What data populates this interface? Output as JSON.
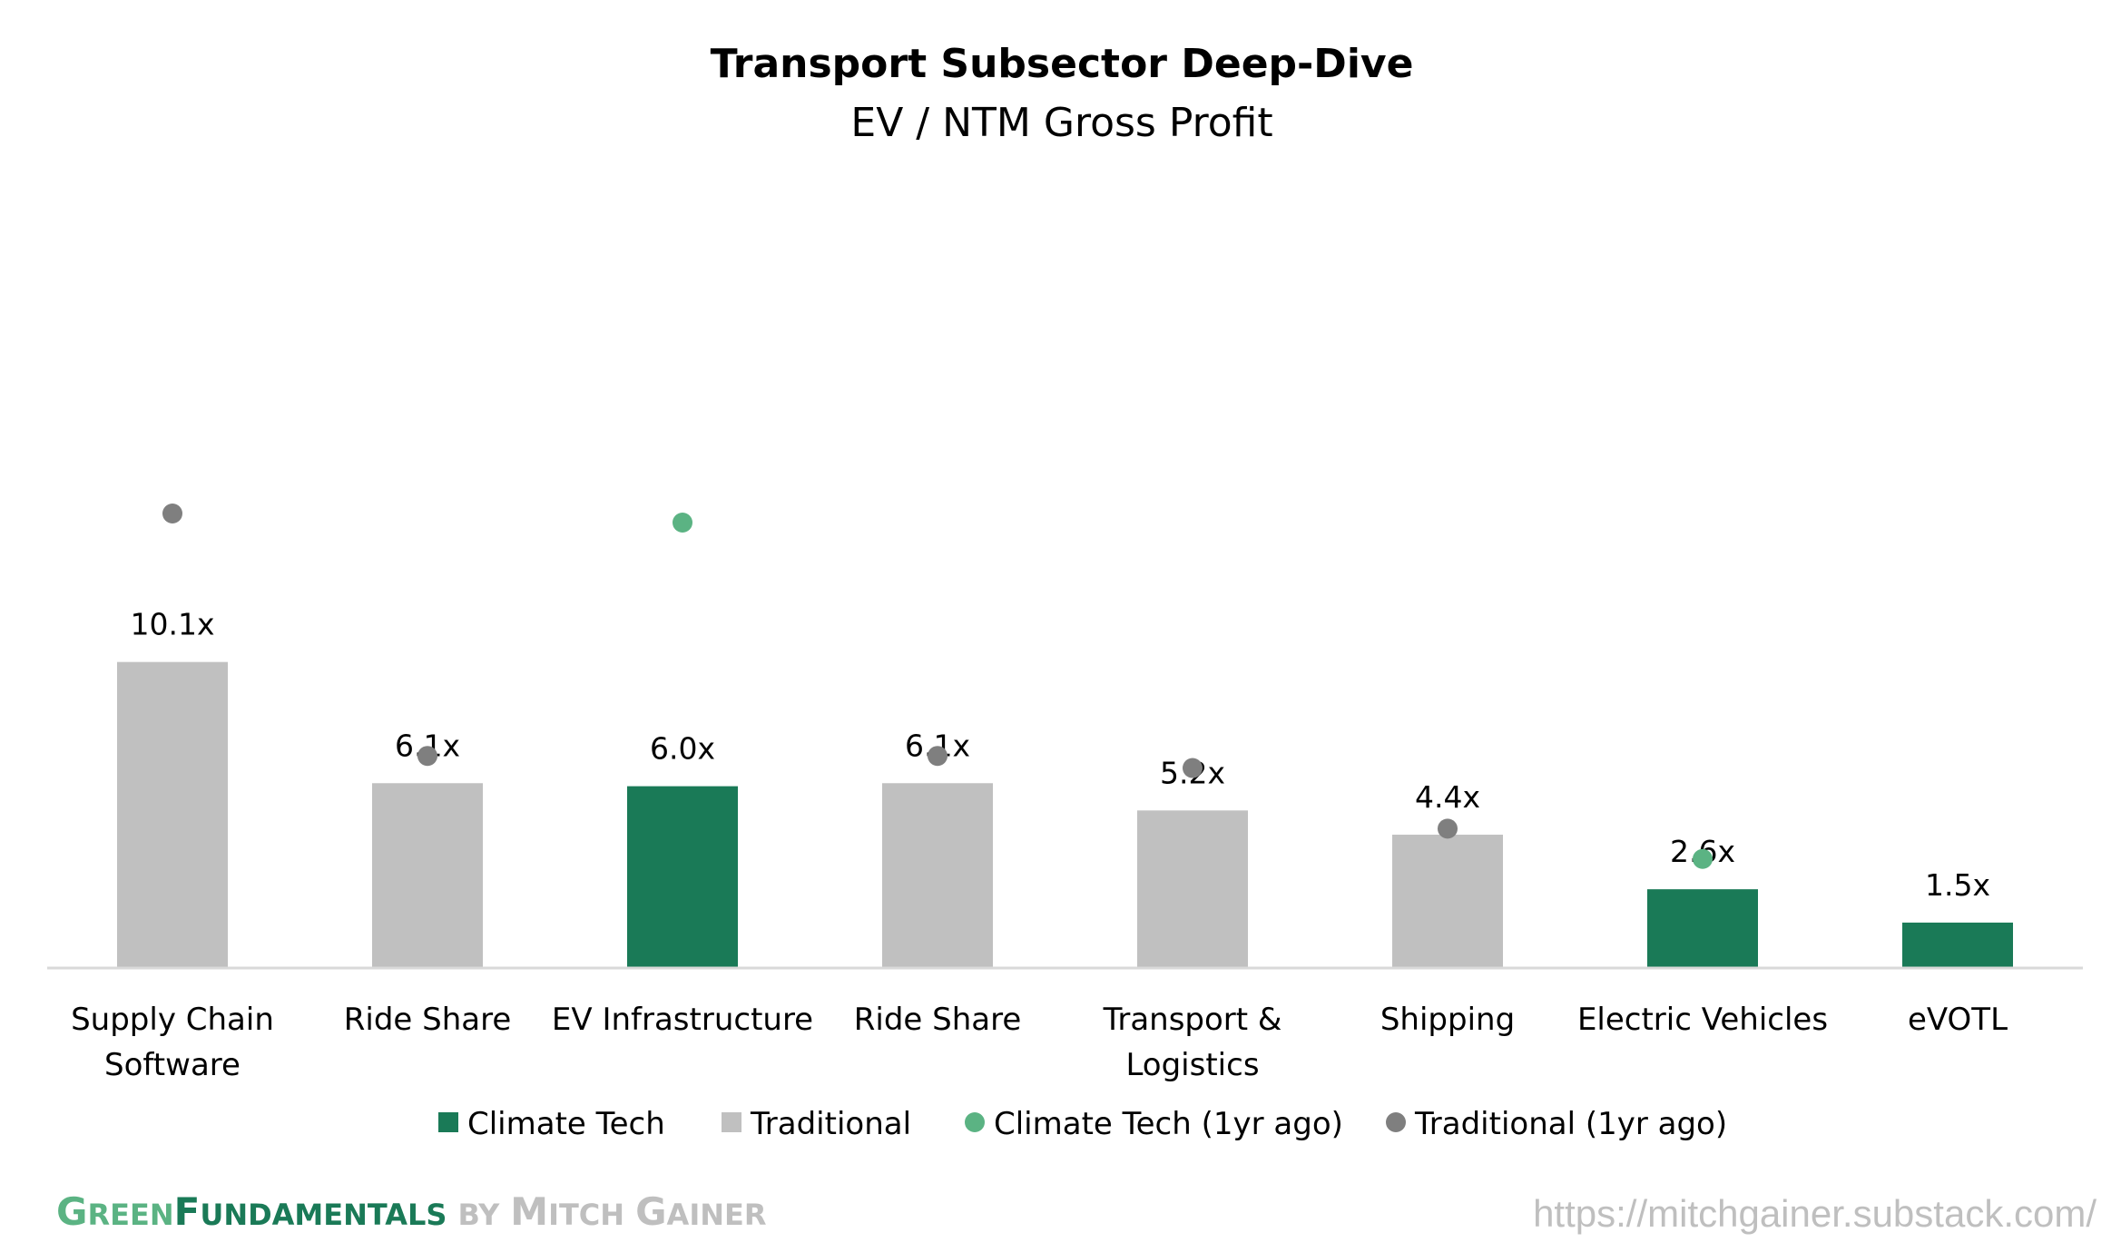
{
  "chart_data": {
    "type": "bar",
    "title": "Transport Subsector Deep-Dive",
    "subtitle": "EV / NTM Gross Profit",
    "categories": [
      [
        "Supply Chain",
        "Software"
      ],
      [
        "Ride Share"
      ],
      [
        "EV Infrastructure"
      ],
      [
        "Ride Share"
      ],
      [
        "Transport &",
        "Logistics"
      ],
      [
        "Shipping"
      ],
      [
        "Electric Vehicles"
      ],
      [
        "eVOTL"
      ]
    ],
    "values": [
      10.1,
      6.1,
      6.0,
      6.1,
      5.2,
      4.4,
      2.6,
      1.5
    ],
    "value_labels": [
      "10.1x",
      "6.1x",
      "6.0x",
      "6.1x",
      "5.2x",
      "4.4x",
      "2.6x",
      "1.5x"
    ],
    "groups": [
      "Traditional",
      "Traditional",
      "Climate Tech",
      "Traditional",
      "Traditional",
      "Traditional",
      "Climate Tech",
      "Climate Tech"
    ],
    "one_year_ago": [
      15.0,
      7.0,
      14.7,
      7.0,
      6.6,
      4.6,
      3.6,
      null
    ],
    "ylim": [
      0,
      24
    ],
    "grid": false,
    "legend_position": "bottom",
    "legend": [
      "Climate Tech",
      "Traditional",
      "Climate Tech (1yr ago)",
      "Traditional (1yr ago)"
    ],
    "colors": {
      "Climate Tech": "#1a7a57",
      "Traditional": "#c0c0c0",
      "Climate Tech (1yr ago)": "#5bb383",
      "Traditional (1yr ago)": "#7f7f7f"
    }
  },
  "footer": {
    "brand_green": "G",
    "brand_green_rest": "REEN",
    "brand_fund": "F",
    "brand_fund_rest": "UNDAMENTALS",
    "brand_by": "BY",
    "brand_mitch": "M",
    "brand_mitch_rest": "ITCH",
    "brand_gainer": "G",
    "brand_gainer_rest": "AINER",
    "url": "https://mitchgainer.substack.com/"
  }
}
